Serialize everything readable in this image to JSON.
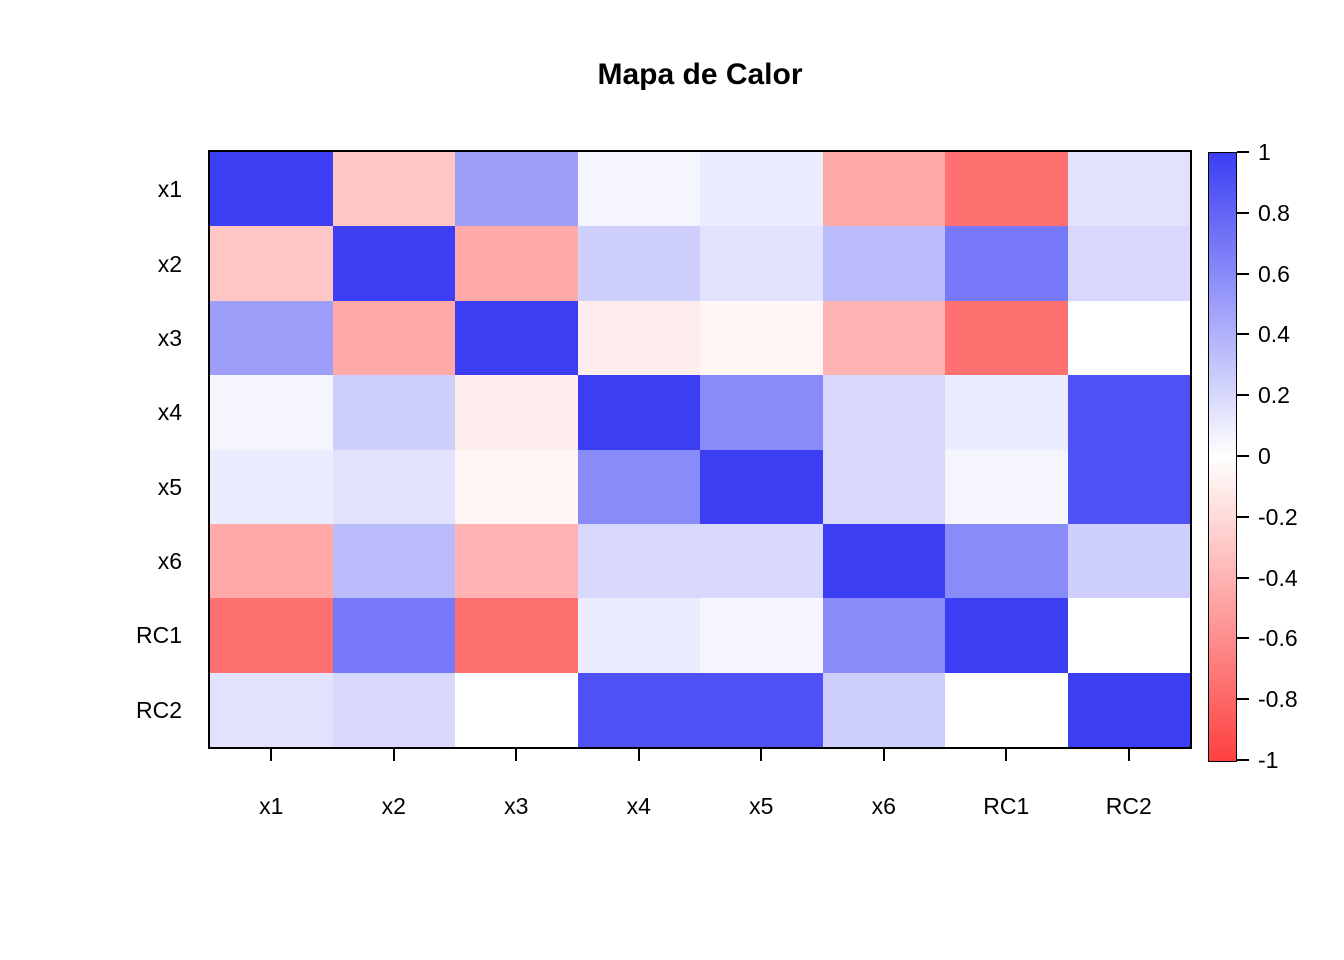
{
  "chart_data": {
    "type": "heatmap",
    "title": "Mapa de Calor",
    "row_labels": [
      "x1",
      "x2",
      "x3",
      "x4",
      "x5",
      "x6",
      "RC1",
      "RC2"
    ],
    "col_labels": [
      "x1",
      "x2",
      "x3",
      "x4",
      "x5",
      "x6",
      "RC1",
      "RC2"
    ],
    "matrix": [
      [
        1.0,
        -0.3,
        0.5,
        0.05,
        0.1,
        -0.45,
        -0.75,
        0.15
      ],
      [
        -0.3,
        1.0,
        -0.45,
        0.25,
        0.15,
        0.35,
        0.7,
        0.2
      ],
      [
        0.5,
        -0.45,
        1.0,
        -0.1,
        -0.05,
        -0.4,
        -0.75,
        0.0
      ],
      [
        0.05,
        0.25,
        -0.1,
        1.0,
        0.6,
        0.2,
        0.1,
        0.9
      ],
      [
        0.1,
        0.15,
        -0.05,
        0.6,
        1.0,
        0.2,
        0.05,
        0.9
      ],
      [
        -0.45,
        0.35,
        -0.4,
        0.2,
        0.2,
        1.0,
        0.6,
        0.25
      ],
      [
        -0.75,
        0.7,
        -0.75,
        0.1,
        0.05,
        0.6,
        1.0,
        0.0
      ],
      [
        0.15,
        0.2,
        0.0,
        0.9,
        0.9,
        0.25,
        0.0,
        1.0
      ]
    ],
    "value_range": [
      -1,
      1
    ],
    "colorscale": {
      "max_color": "#3B3EF3",
      "mid_color": "#FFFFFF",
      "min_color": "#FF4040"
    },
    "colorbar_ticks": {
      "labels": [
        "1",
        "0.8",
        "0.6",
        "0.4",
        "0.2",
        "0",
        "-0.2",
        "-0.4",
        "-0.6",
        "-0.8",
        "-1"
      ],
      "values": [
        1,
        0.8,
        0.6,
        0.4,
        0.2,
        0,
        -0.2,
        -0.4,
        -0.6,
        -0.8,
        -1
      ]
    },
    "legend_position": "right",
    "grid": false
  }
}
